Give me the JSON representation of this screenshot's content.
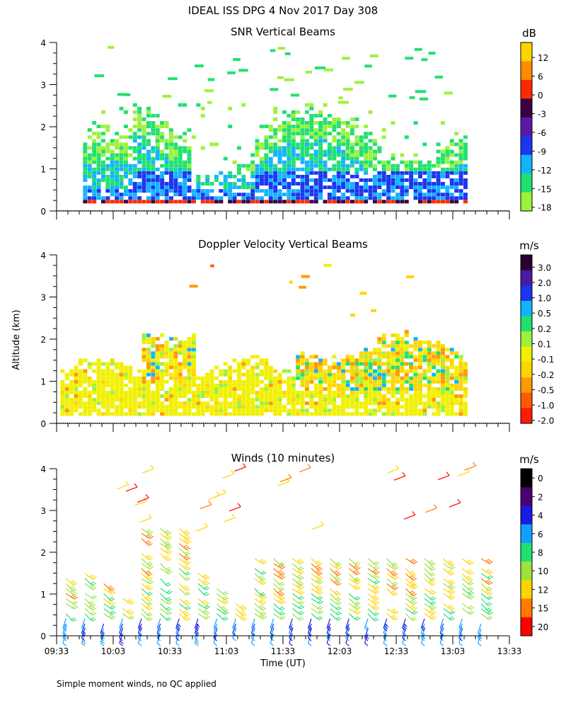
{
  "figure": {
    "title": "IDEAL ISS DPG    4 Nov 2017 Day 308",
    "ylabel": "Altitude (km)",
    "xlabel": "Time (UT)",
    "footnote": "Simple moment winds, no QC applied"
  },
  "chart_data": [
    {
      "type": "heatmap",
      "title": "SNR Vertical Beams",
      "xlabel": "",
      "ylabel": "Altitude (km)",
      "xlim_minutes_since_0933": [
        0,
        240
      ],
      "ylim": [
        0,
        4
      ],
      "yticks": [
        "0",
        "1",
        "2",
        "3",
        "4"
      ],
      "colorbar": {
        "unit": "dB",
        "labels": [
          "12",
          "6",
          "0",
          "-3",
          "-6",
          "-9",
          "-12",
          "-15",
          "-18"
        ],
        "colors": [
          "#ffd400",
          "#ff8c00",
          "#ff2a00",
          "#3a0040",
          "#5a1aa6",
          "#1a36f0",
          "#12b4ff",
          "#22e070",
          "#9cf23a"
        ]
      },
      "data_extent": {
        "time_start": "09:47",
        "time_end": "13:23",
        "max_altitude_km": 2.5,
        "sparse_echoes_up_to_km": 4.0
      },
      "description_of_layers": [
        {
          "altitude_km": [
            0.2,
            0.5
          ],
          "snr_db": -9
        },
        {
          "altitude_km": [
            0.5,
            1.2
          ],
          "snr_db": -12
        },
        {
          "altitude_km": [
            1.2,
            1.8
          ],
          "snr_db": -15
        }
      ]
    },
    {
      "type": "heatmap",
      "title": "Doppler Velocity Vertical Beams",
      "ylabel": "Altitude (km)",
      "xlim_minutes_since_0933": [
        0,
        240
      ],
      "ylim": [
        0,
        4
      ],
      "yticks": [
        "0",
        "1",
        "2",
        "3",
        "4"
      ],
      "colorbar": {
        "unit": "m/s",
        "labels": [
          "3.0",
          "2.0",
          "1.0",
          "0.5",
          "0.2",
          "0.1",
          "-0.1",
          "-0.2",
          "-0.5",
          "-1.0",
          "-2.0"
        ],
        "colors": [
          "#2a0030",
          "#4a1aa0",
          "#1a36f0",
          "#12b4ff",
          "#22e070",
          "#9cf23a",
          "#f0f000",
          "#ffd400",
          "#ff9a00",
          "#ff5a00",
          "#ff1a00"
        ]
      },
      "data_extent": {
        "time_start": "09:33",
        "time_end": "13:23",
        "max_altitude_km": 2.5
      },
      "dominant_velocity_m_s": -0.1
    },
    {
      "type": "scatter",
      "title": "Winds (10 minutes)",
      "xlabel": "Time (UT)",
      "ylabel": "Altitude (km)",
      "xlim_minutes_since_0933": [
        0,
        240
      ],
      "ylim": [
        0,
        4
      ],
      "yticks": [
        "0",
        "1",
        "2",
        "3",
        "4"
      ],
      "xticks": [
        "09:33",
        "10:03",
        "10:33",
        "11:03",
        "11:33",
        "12:03",
        "12:33",
        "13:03",
        "13:33"
      ],
      "colorbar": {
        "unit": "m/s",
        "labels": [
          "0",
          "2",
          "4",
          "6",
          "8",
          "10",
          "12",
          "15",
          "20"
        ],
        "colors": [
          "#000000",
          "#4a0070",
          "#1a1ae0",
          "#12a0ff",
          "#22e070",
          "#9ce23a",
          "#ffd400",
          "#ff7a00",
          "#ff0000"
        ]
      },
      "barb_profiles_minutes": [
        5,
        15,
        25,
        35,
        45,
        55,
        65,
        75,
        85,
        95,
        105,
        115,
        125,
        135,
        145,
        155,
        165,
        175,
        185,
        195,
        205,
        215,
        225
      ]
    }
  ]
}
